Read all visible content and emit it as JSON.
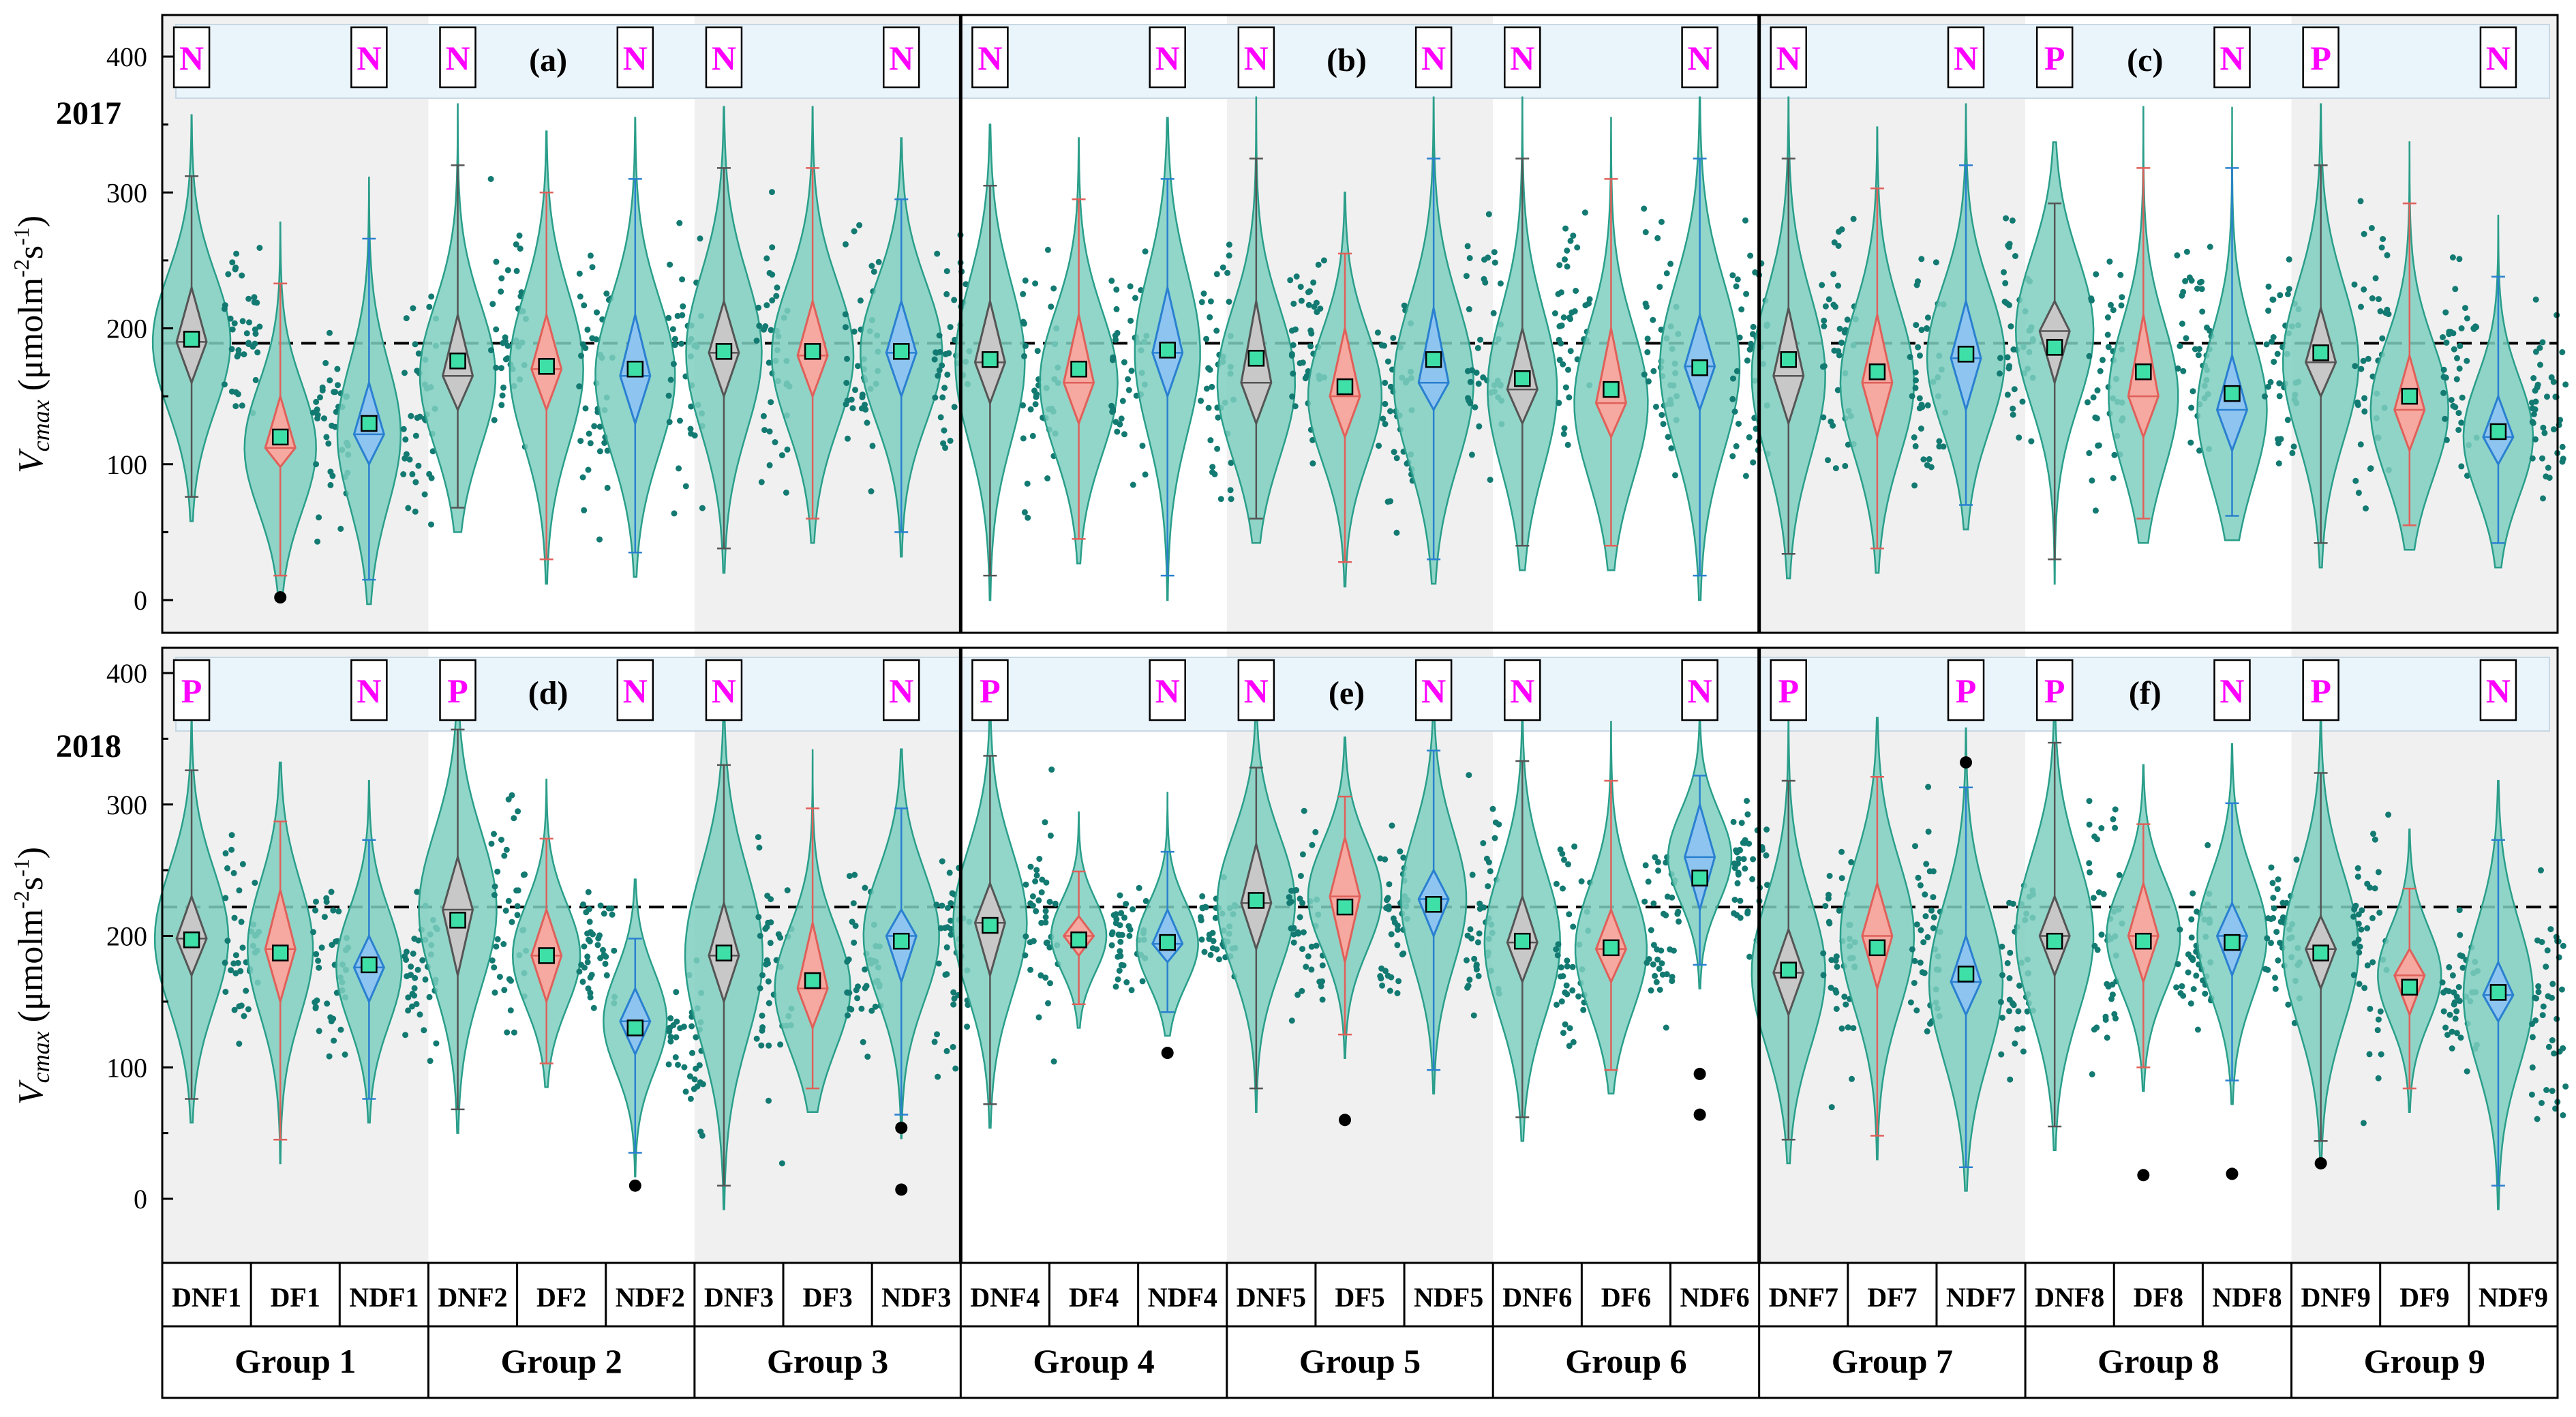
{
  "chart_data": {
    "type": "violin",
    "ylabel": "V cmax (µmolm-2s-1)",
    "ylabel_parts": {
      "symbol": "V",
      "subscript": "cmax",
      "units_open": " (μmolm",
      "exp1": "-2",
      "s": "s",
      "exp2": "-1",
      "units_close": ")"
    },
    "yticks": [
      0,
      100,
      200,
      300,
      400
    ],
    "ylim": [
      -30,
      430
    ],
    "groups": [
      "Group 1",
      "Group 2",
      "Group 3",
      "Group 4",
      "Group 5",
      "Group 6",
      "Group 7",
      "Group 8",
      "Group 9"
    ],
    "categories": [
      "DNF1",
      "DF1",
      "NDF1",
      "DNF2",
      "DF2",
      "NDF2",
      "DNF3",
      "DF3",
      "NDF3",
      "DNF4",
      "DF4",
      "NDF4",
      "DNF5",
      "DF5",
      "NDF5",
      "DNF6",
      "DF6",
      "NDF6",
      "DNF7",
      "DF7",
      "NDF7",
      "DNF8",
      "DF8",
      "NDF8",
      "DNF9",
      "DF9",
      "NDF9"
    ],
    "rows": [
      {
        "year": "2017",
        "reference_line": 189,
        "panel_labels": [
          "(a)",
          "(b)",
          "(c)"
        ],
        "badges": [
          [
            "N",
            "N"
          ],
          [
            "N",
            "N"
          ],
          [
            "N",
            "N"
          ],
          [
            "N",
            "N"
          ],
          [
            "N",
            "N"
          ],
          [
            "N",
            "N"
          ],
          [
            "N",
            "N"
          ],
          [
            "P",
            "N"
          ],
          [
            "P",
            "N"
          ]
        ],
        "means": [
          192,
          120,
          130,
          176,
          172,
          170,
          183,
          183,
          183,
          177,
          170,
          184,
          178,
          157,
          177,
          163,
          155,
          171,
          177,
          168,
          181,
          186,
          168,
          152,
          182,
          150,
          124
        ],
        "medians": [
          190,
          112,
          122,
          165,
          170,
          165,
          182,
          180,
          182,
          175,
          160,
          182,
          160,
          150,
          160,
          155,
          145,
          172,
          165,
          160,
          178,
          198,
          150,
          140,
          175,
          140,
          120
        ],
        "q1": [
          160,
          98,
          100,
          140,
          140,
          130,
          150,
          150,
          150,
          145,
          130,
          150,
          130,
          120,
          140,
          130,
          120,
          140,
          130,
          120,
          140,
          160,
          120,
          110,
          150,
          110,
          100
        ],
        "q3": [
          230,
          150,
          160,
          210,
          210,
          210,
          220,
          220,
          220,
          220,
          210,
          230,
          220,
          200,
          215,
          200,
          200,
          210,
          215,
          210,
          220,
          220,
          210,
          180,
          215,
          180,
          150
        ],
        "whisker_low": [
          76,
          18,
          15,
          68,
          30,
          35,
          38,
          60,
          50,
          18,
          45,
          18,
          60,
          28,
          30,
          40,
          40,
          18,
          34,
          38,
          70,
          30,
          60,
          62,
          42,
          55,
          42
        ],
        "whisker_high": [
          312,
          233,
          266,
          320,
          300,
          310,
          318,
          318,
          295,
          305,
          295,
          310,
          325,
          255,
          325,
          325,
          310,
          325,
          325,
          303,
          320,
          292,
          318,
          318,
          320,
          292,
          238
        ],
        "max_density": [
          0.9,
          0.75,
          0.55,
          0.85,
          0.8,
          0.95,
          0.85,
          1.0,
          1.0,
          0.7,
          0.9,
          0.6,
          0.9,
          0.8,
          0.95,
          0.7,
          0.8,
          0.95,
          0.8,
          0.8,
          0.9,
          0.9,
          0.7,
          0.7,
          0.85,
          0.9,
          0.7
        ],
        "outliers": [
          [],
          [
            2
          ],
          [],
          [],
          [],
          [],
          [],
          [],
          [],
          [],
          [],
          [],
          [],
          [],
          [],
          [],
          [],
          [],
          [],
          [],
          [],
          [],
          [],
          [],
          [],
          [],
          []
        ]
      },
      {
        "year": "2018",
        "reference_line": 222,
        "panel_labels": [
          "(d)",
          "(e)",
          "(f)"
        ],
        "badges": [
          [
            "P",
            "N"
          ],
          [
            "P",
            "N"
          ],
          [
            "N",
            "N"
          ],
          [
            "P",
            "N"
          ],
          [
            "N",
            "N"
          ],
          [
            "N",
            "N"
          ],
          [
            "P",
            "P"
          ],
          [
            "P",
            "N"
          ],
          [
            "P",
            "N"
          ]
        ],
        "means": [
          197,
          187,
          178,
          212,
          185,
          130,
          187,
          166,
          196,
          208,
          197,
          195,
          227,
          222,
          224,
          196,
          191,
          244,
          174,
          191,
          171,
          196,
          196,
          195,
          187,
          161,
          157
        ],
        "medians": [
          198,
          190,
          176,
          220,
          185,
          135,
          185,
          160,
          200,
          210,
          200,
          194,
          225,
          230,
          228,
          195,
          190,
          260,
          172,
          200,
          165,
          200,
          200,
          200,
          190,
          170,
          155
        ],
        "q1": [
          170,
          150,
          150,
          170,
          150,
          110,
          150,
          130,
          165,
          170,
          185,
          180,
          190,
          180,
          200,
          165,
          165,
          220,
          140,
          160,
          140,
          170,
          165,
          170,
          160,
          140,
          135
        ],
        "q3": [
          230,
          235,
          200,
          260,
          220,
          160,
          225,
          210,
          220,
          240,
          215,
          220,
          270,
          275,
          250,
          230,
          220,
          300,
          205,
          240,
          200,
          230,
          240,
          225,
          215,
          190,
          180
        ],
        "whisker_low": [
          76,
          45,
          76,
          68,
          103,
          35,
          10,
          84,
          64,
          72,
          148,
          142,
          84,
          125,
          98,
          62,
          98,
          178,
          45,
          48,
          24,
          55,
          100,
          90,
          44,
          84,
          10
        ],
        "whisker_high": [
          326,
          287,
          273,
          357,
          274,
          198,
          330,
          297,
          297,
          337,
          249,
          264,
          328,
          306,
          341,
          333,
          318,
          322,
          318,
          321,
          313,
          347,
          285,
          301,
          324,
          236,
          273
        ],
        "max_density": [
          0.8,
          0.6,
          0.6,
          0.9,
          0.65,
          0.55,
          0.9,
          0.85,
          0.85,
          0.8,
          0.35,
          0.5,
          0.9,
          0.8,
          0.6,
          0.85,
          0.75,
          0.55,
          0.8,
          0.8,
          0.8,
          0.9,
          0.8,
          0.7,
          0.85,
          0.55,
          0.7
        ],
        "outliers": [
          [],
          [],
          [],
          [],
          [],
          [
            10
          ],
          [],
          [],
          [
            54,
            7
          ],
          [],
          [],
          [
            111
          ],
          [],
          [
            60
          ],
          [],
          [],
          [],
          [
            95,
            64
          ],
          [],
          [],
          [
            332
          ],
          [],
          [
            18
          ],
          [
            19
          ],
          [
            27
          ],
          [],
          []
        ]
      }
    ],
    "legend": "none"
  },
  "colors": {
    "violin_fill": "#7ecfc0",
    "violin_edge": "#2a9e8a",
    "dot": "#137a72",
    "mean_marker": "#3fe0a8",
    "badge_text": "#ff00ff",
    "box_gray": "#c8c8c8",
    "box_red": "#f5a9a0",
    "box_blue": "#8ec5f0",
    "band": "#eaf4fb",
    "shade": "#f0f0f0"
  }
}
